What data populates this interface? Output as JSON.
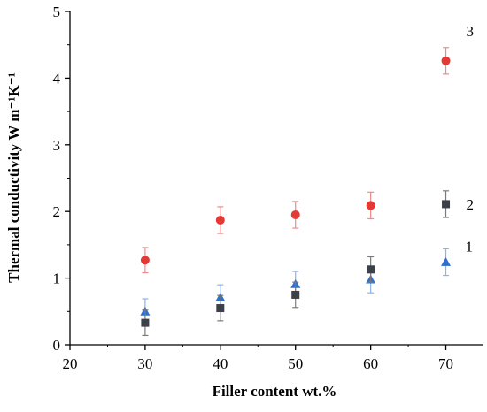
{
  "chart_data": {
    "type": "scatter",
    "title": "",
    "xlabel": "Filler content wt.%",
    "ylabel": "Thermal conductivity W m⁻¹K⁻¹",
    "xlim": [
      20,
      75
    ],
    "ylim": [
      0,
      5
    ],
    "x_ticks": [
      20,
      30,
      40,
      50,
      60,
      70
    ],
    "y_ticks": [
      0,
      1,
      2,
      3,
      4,
      5
    ],
    "grid": false,
    "legend": "none (series labelled inline)",
    "series": [
      {
        "label": "1",
        "marker": "triangle",
        "color": "#2f6fce",
        "errorbar_color": "#8fb3e6",
        "x": [
          30,
          40,
          50,
          60,
          70
        ],
        "y": [
          0.5,
          0.71,
          0.91,
          0.98,
          1.24
        ],
        "error": [
          0.19,
          0.19,
          0.19,
          0.2,
          0.2
        ]
      },
      {
        "label": "2",
        "marker": "square",
        "color": "#3c4048",
        "errorbar_color": "#7a7a7a",
        "x": [
          30,
          40,
          50,
          60,
          70
        ],
        "y": [
          0.33,
          0.55,
          0.75,
          1.13,
          2.11
        ],
        "error": [
          0.19,
          0.19,
          0.19,
          0.19,
          0.2
        ]
      },
      {
        "label": "3",
        "marker": "circle",
        "color": "#e53935",
        "errorbar_color": "#f08a8a",
        "x": [
          30,
          40,
          50,
          60,
          70
        ],
        "y": [
          1.27,
          1.87,
          1.95,
          2.09,
          4.26
        ],
        "error": [
          0.19,
          0.2,
          0.2,
          0.2,
          0.2
        ]
      }
    ]
  }
}
